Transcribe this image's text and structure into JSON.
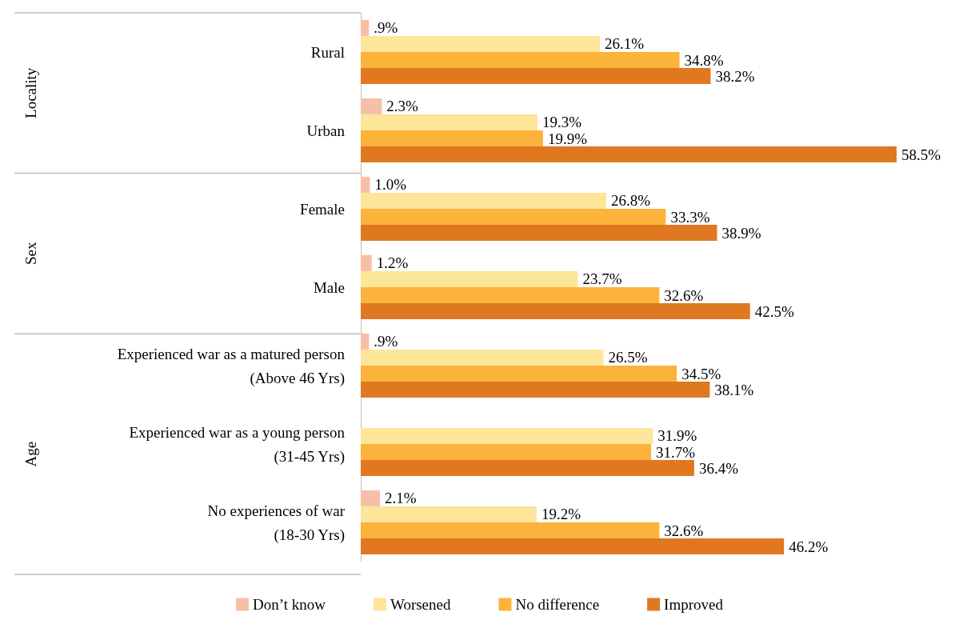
{
  "chart_data": {
    "type": "bar",
    "orientation": "horizontal",
    "legend": "bottom",
    "categories": [
      "Rural",
      "Urban",
      "Female",
      "Male",
      "Experienced war as a matured person\n(Above 46 Yrs)",
      "Experienced war as a young person\n(31-45 Yrs)",
      "No experiences of war\n(18-30 Yrs)"
    ],
    "annotations": [
      "Locality",
      "Sex",
      "Age"
    ],
    "series": [
      {
        "name": "Don’t know",
        "color": "#f8bfa8",
        "values": [
          0.9,
          2.3,
          1.0,
          1.2,
          0.9,
          null,
          2.1
        ],
        "value_labels": [
          ".9%",
          "2.3%",
          "1.0%",
          "1.2%",
          ".9%",
          null,
          "2.1%"
        ]
      },
      {
        "name": "Worsened",
        "color": "#fde59a",
        "values": [
          26.1,
          19.3,
          26.8,
          23.7,
          26.5,
          31.9,
          19.2
        ],
        "value_labels": [
          "26.1%",
          "19.3%",
          "26.8%",
          "23.7%",
          "26.5%",
          "31.9%",
          "19.2%"
        ]
      },
      {
        "name": "No difference",
        "color": "#fbb33c",
        "values": [
          34.8,
          19.9,
          33.3,
          32.6,
          34.5,
          31.7,
          32.6
        ],
        "value_labels": [
          "34.8%",
          "19.9%",
          "33.3%",
          "32.6%",
          "34.5%",
          "31.7%",
          "32.6%"
        ]
      },
      {
        "name": "Improved",
        "color": "#e07820",
        "values": [
          38.2,
          58.5,
          38.9,
          42.5,
          38.1,
          36.4,
          46.2
        ],
        "value_labels": [
          "38.2%",
          "58.5%",
          "38.9%",
          "42.5%",
          "38.1%",
          "36.4%",
          "46.2%"
        ]
      }
    ]
  }
}
